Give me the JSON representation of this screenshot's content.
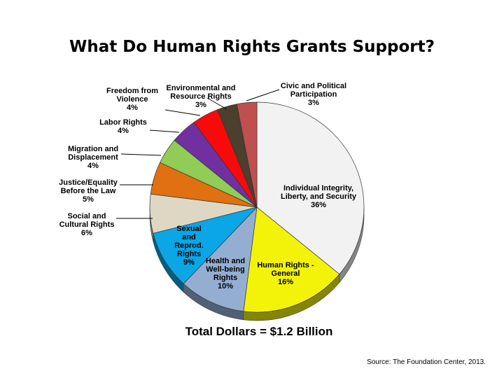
{
  "title": "What Do Human Rights Grants Support?",
  "total_label": "Total Dollars = $1.2 Billion",
  "source": "Source: The Foundation Center, 2013.",
  "chart_data": {
    "type": "pie",
    "title": "What Do Human Rights Grants Support?",
    "series": [
      {
        "values": [
          36,
          16,
          10,
          9,
          6,
          5,
          4,
          4,
          4,
          3,
          3
        ]
      }
    ],
    "slices": [
      {
        "lines": [
          "Individual Integrity,",
          "Liberty, and Security"
        ],
        "pct": "36%",
        "value": 36,
        "color": "#f2f2f2"
      },
      {
        "lines": [
          "Human Rights -",
          "General"
        ],
        "pct": "16%",
        "value": 16,
        "color": "#f3f30a"
      },
      {
        "lines": [
          "Health and",
          "Well-being",
          "Rights"
        ],
        "pct": "10%",
        "value": 10,
        "color": "#94aed2"
      },
      {
        "lines": [
          "Sexual",
          "and",
          "Reprod.",
          "Rights"
        ],
        "pct": "9%",
        "value": 9,
        "color": "#0aa6e6"
      },
      {
        "lines": [
          "Social and",
          "Cultural Rights"
        ],
        "pct": "6%",
        "value": 6,
        "color": "#ddd7c4"
      },
      {
        "lines": [
          "Justice/Equality",
          "Before the Law"
        ],
        "pct": "5%",
        "value": 5,
        "color": "#e07010"
      },
      {
        "lines": [
          "Migration and",
          "Displacement"
        ],
        "pct": "4%",
        "value": 4,
        "color": "#90cc56"
      },
      {
        "lines": [
          "Labor Rights"
        ],
        "pct": "4%",
        "value": 4,
        "color": "#7030a0"
      },
      {
        "lines": [
          "Freedom from",
          "Violence"
        ],
        "pct": "4%",
        "value": 4,
        "color": "#f80a0a"
      },
      {
        "lines": [
          "Environmental and",
          "Resource Rights"
        ],
        "pct": "3%",
        "value": 3,
        "color": "#4c3f2e"
      },
      {
        "lines": [
          "Civic and Political",
          "Participation"
        ],
        "pct": "3%",
        "value": 3,
        "color": "#c05050"
      }
    ]
  }
}
